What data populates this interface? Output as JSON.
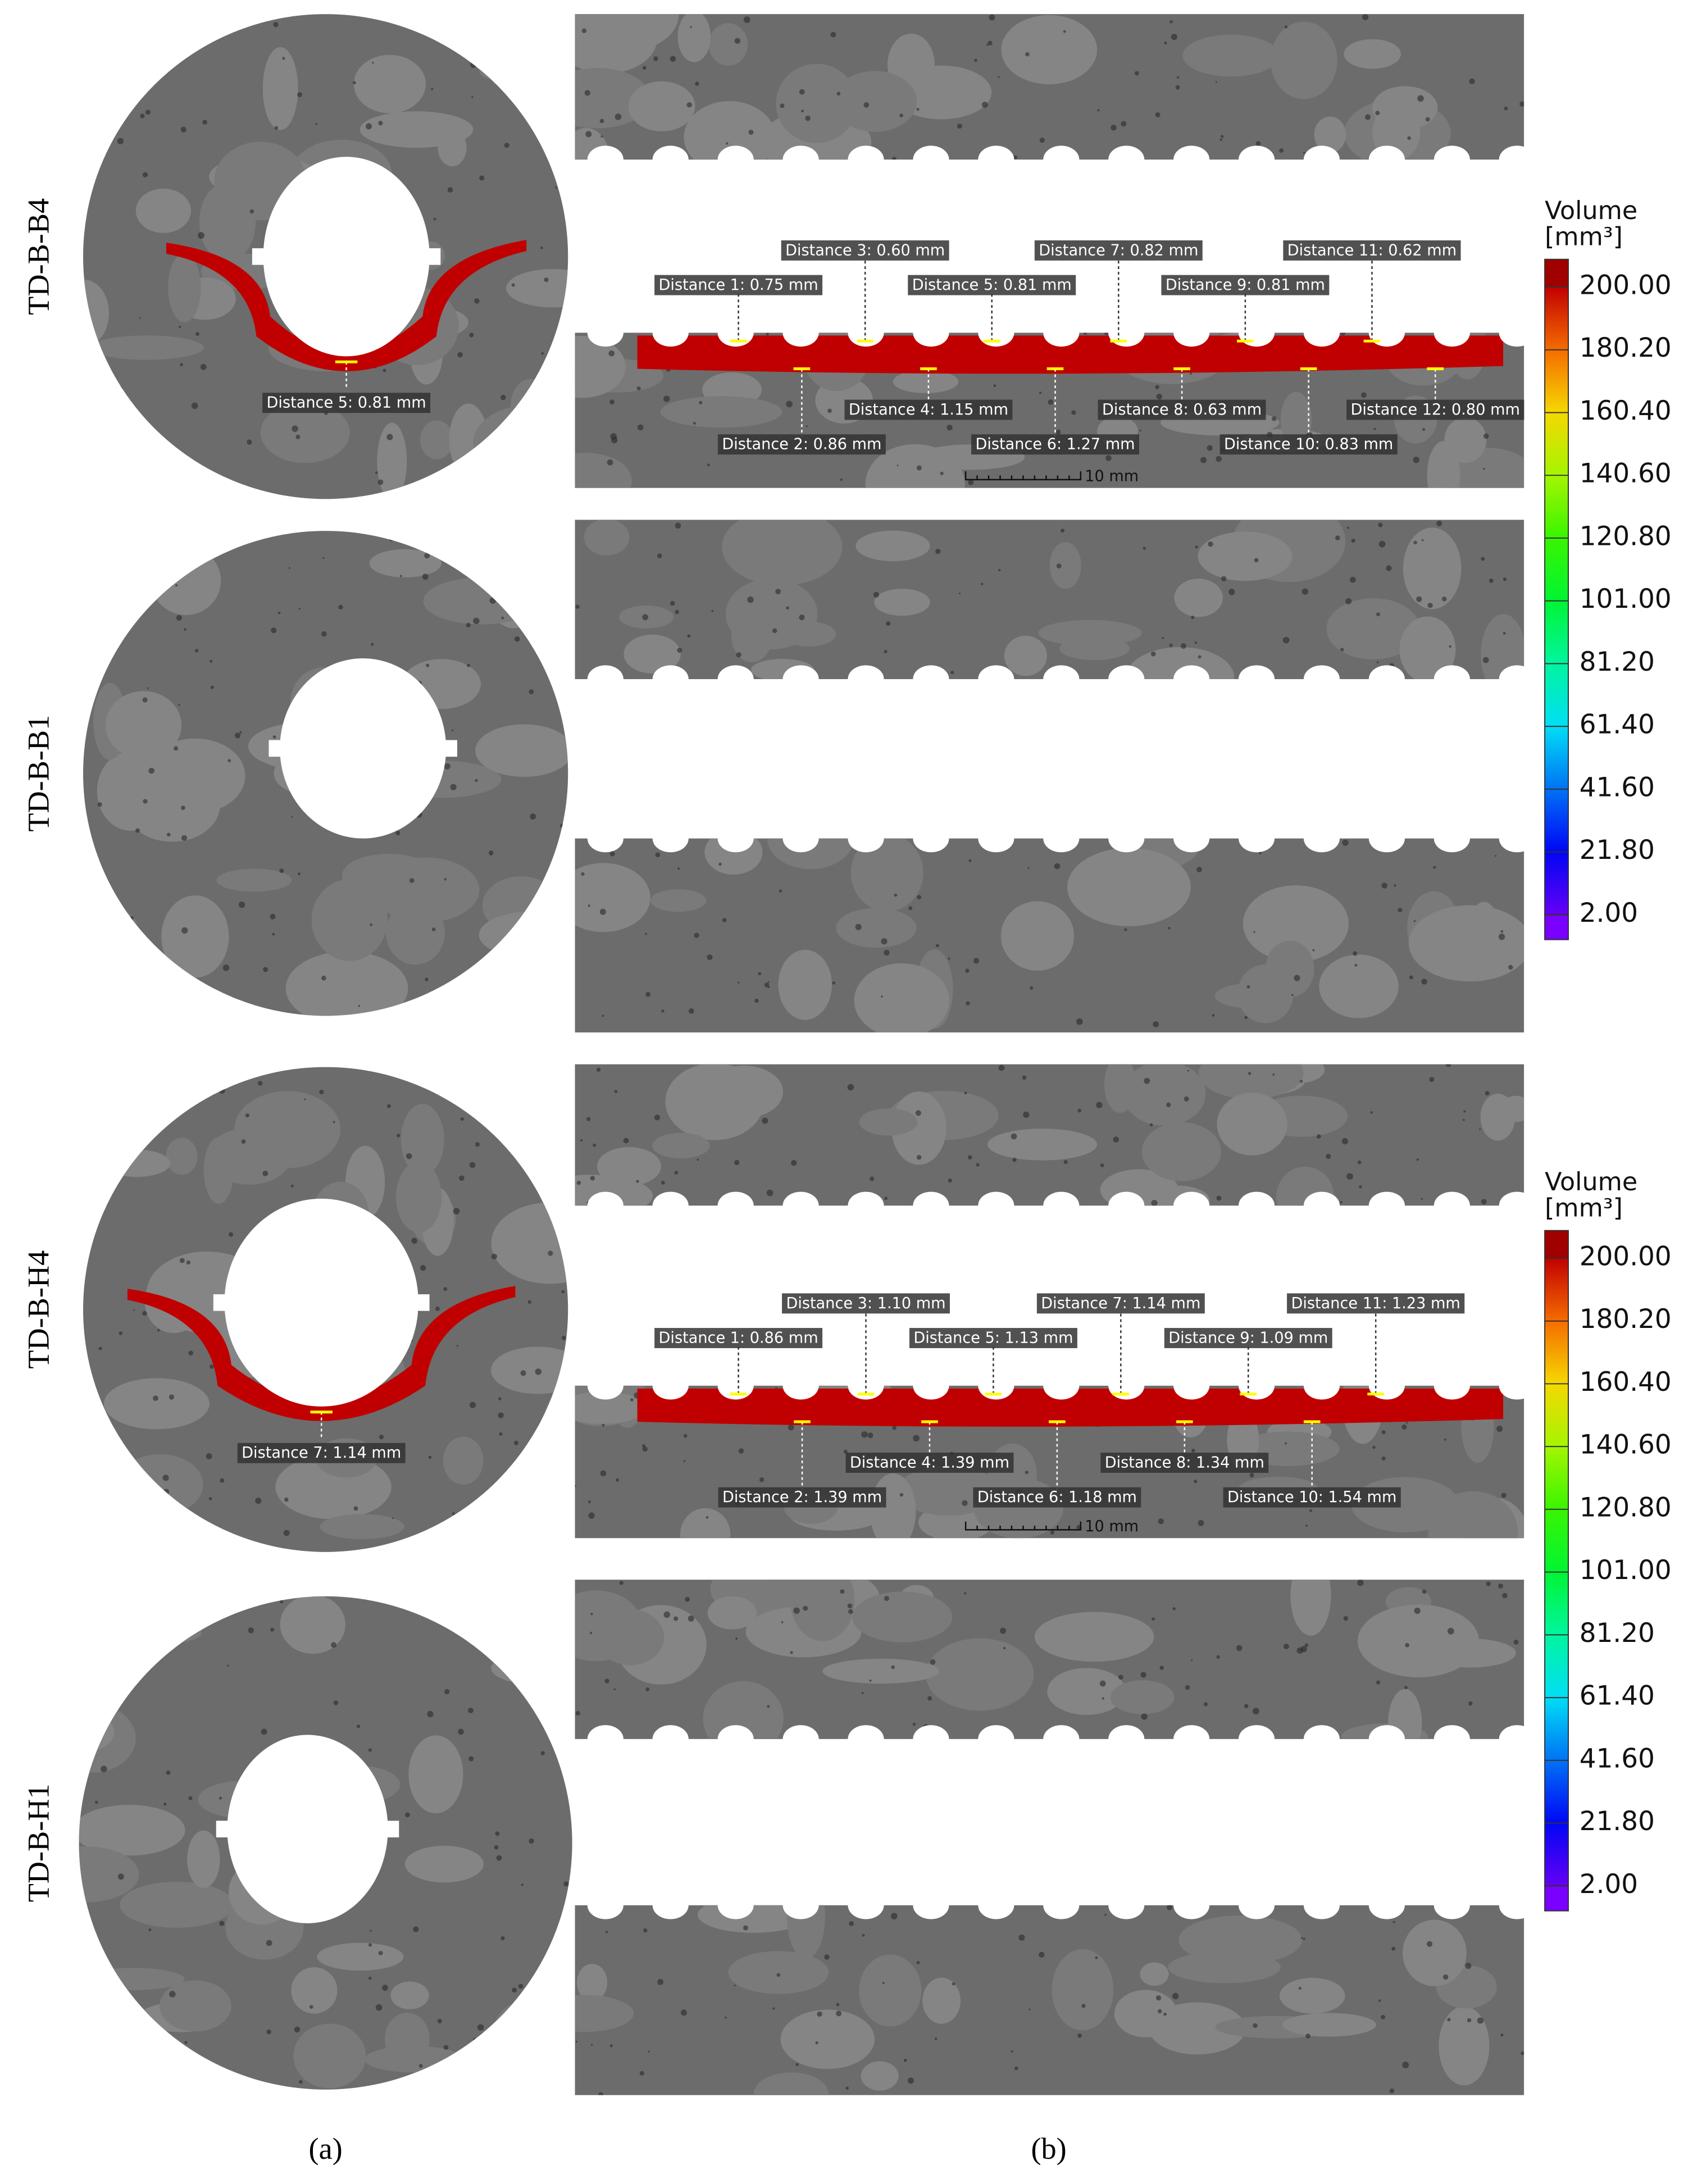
{
  "panel_a": {
    "label": "(a)"
  },
  "panel_b": {
    "label": "(b)"
  },
  "rows": [
    {
      "name": "TD-B-B4",
      "circle_measure": "Distance 5: 0.81 mm",
      "measures": [
        "Distance 1: 0.75 mm",
        "Distance 2: 0.86 mm",
        "Distance 3: 0.60 mm",
        "Distance 4: 1.15 mm",
        "Distance 5: 0.81 mm",
        "Distance 6: 1.27 mm",
        "Distance 7: 0.82 mm",
        "Distance 8: 0.63 mm",
        "Distance 9: 0.81 mm",
        "Distance 10: 0.83 mm",
        "Distance 11: 0.62 mm",
        "Distance 12: 0.80 mm"
      ],
      "scale_bar": "10 mm"
    },
    {
      "name": "TD-B-B1"
    },
    {
      "name": "TD-B-H4",
      "circle_measure": "Distance 7: 1.14 mm",
      "measures": [
        "Distance 1: 0.86 mm",
        "Distance 2: 1.39 mm",
        "Distance 3: 1.10 mm",
        "Distance 4: 1.39 mm",
        "Distance 5: 1.13 mm",
        "Distance 6: 1.18 mm",
        "Distance 7: 1.14 mm",
        "Distance 8: 1.34 mm",
        "Distance 9: 1.09 mm",
        "Distance 10: 1.54 mm",
        "Distance 11: 1.23 mm"
      ],
      "scale_bar": "10 mm"
    },
    {
      "name": "TD-B-H1"
    }
  ],
  "colorbars": [
    {
      "title": "Volume",
      "unit": "[mm³]",
      "ticks": [
        {
          "value": 200,
          "label": "200.00"
        },
        {
          "value": 180.2,
          "label": "180.20"
        },
        {
          "value": 160.4,
          "label": "160.40"
        },
        {
          "value": 140.6,
          "label": "140.60"
        },
        {
          "value": 120.8,
          "label": "120.80"
        },
        {
          "value": 101,
          "label": "101.00"
        },
        {
          "value": 81.2,
          "label": "81.20"
        },
        {
          "value": 61.4,
          "label": "61.40"
        },
        {
          "value": 41.6,
          "label": "41.60"
        },
        {
          "value": 21.8,
          "label": "21.80"
        },
        {
          "value": 2,
          "label": "2.00"
        }
      ]
    },
    {
      "title": "Volume",
      "unit": "[mm³]",
      "ticks": [
        {
          "value": 200,
          "label": "200.00"
        },
        {
          "value": 180.2,
          "label": "180.20"
        },
        {
          "value": 160.4,
          "label": "160.40"
        },
        {
          "value": 140.6,
          "label": "140.60"
        },
        {
          "value": 120.8,
          "label": "120.80"
        },
        {
          "value": 101,
          "label": "101.00"
        },
        {
          "value": 81.2,
          "label": "81.20"
        },
        {
          "value": 61.4,
          "label": "61.40"
        },
        {
          "value": 41.6,
          "label": "41.60"
        },
        {
          "value": 21.8,
          "label": "21.80"
        },
        {
          "value": 2,
          "label": "2.00"
        }
      ]
    }
  ]
}
